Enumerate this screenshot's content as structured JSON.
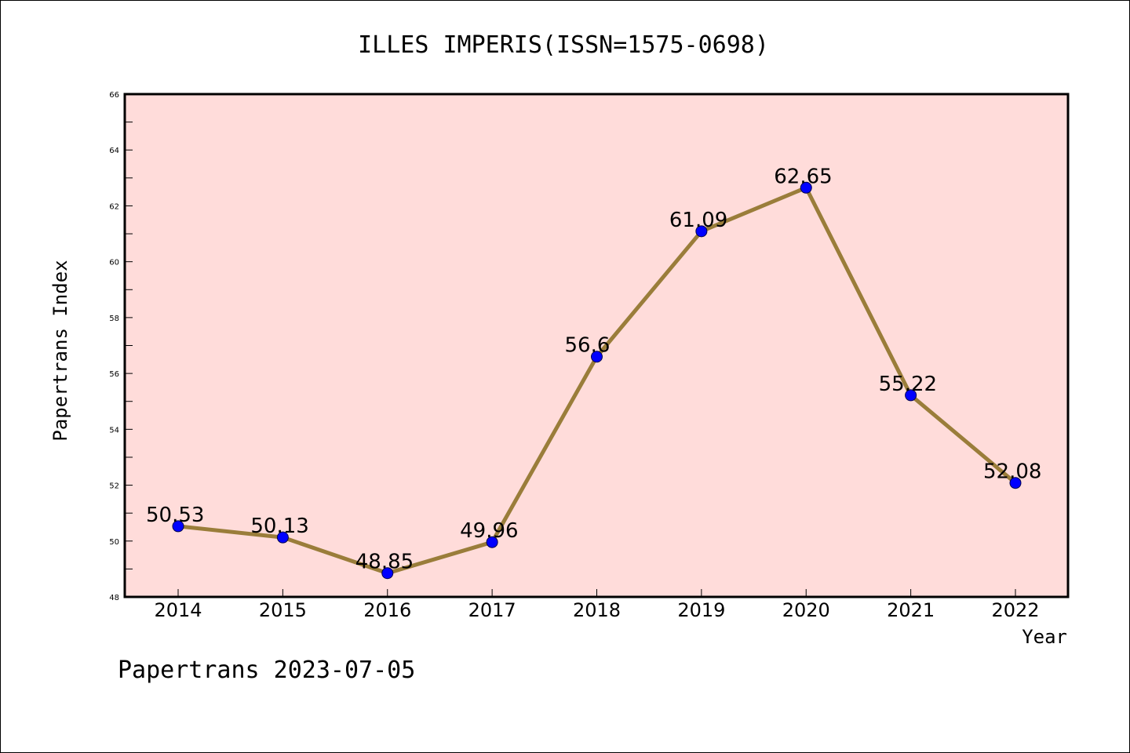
{
  "chart_data": {
    "type": "line",
    "title": "ILLES IMPERIS(ISSN=1575-0698)",
    "xlabel": "Year",
    "ylabel": "Papertrans Index",
    "categories": [
      "2014",
      "2015",
      "2016",
      "2017",
      "2018",
      "2019",
      "2020",
      "2021",
      "2022"
    ],
    "values": [
      50.53,
      50.13,
      48.85,
      49.96,
      56.6,
      61.09,
      62.65,
      55.22,
      52.08
    ],
    "data_labels": [
      "50.53",
      "50.13",
      "48.85",
      "49.96",
      "56.6",
      "61.09",
      "62.65",
      "55.22",
      "52.08"
    ],
    "ylim": [
      48,
      66
    ],
    "yticks": [
      48,
      50,
      52,
      54,
      56,
      58,
      60,
      62,
      64,
      66
    ],
    "grid": false,
    "colors": {
      "plot_background": "#FFDCDA",
      "line": "#9A7D3A",
      "marker": "#0000FF",
      "marker_edge": "#00004d"
    }
  },
  "footer": {
    "text": "Papertrans 2023-07-05"
  }
}
